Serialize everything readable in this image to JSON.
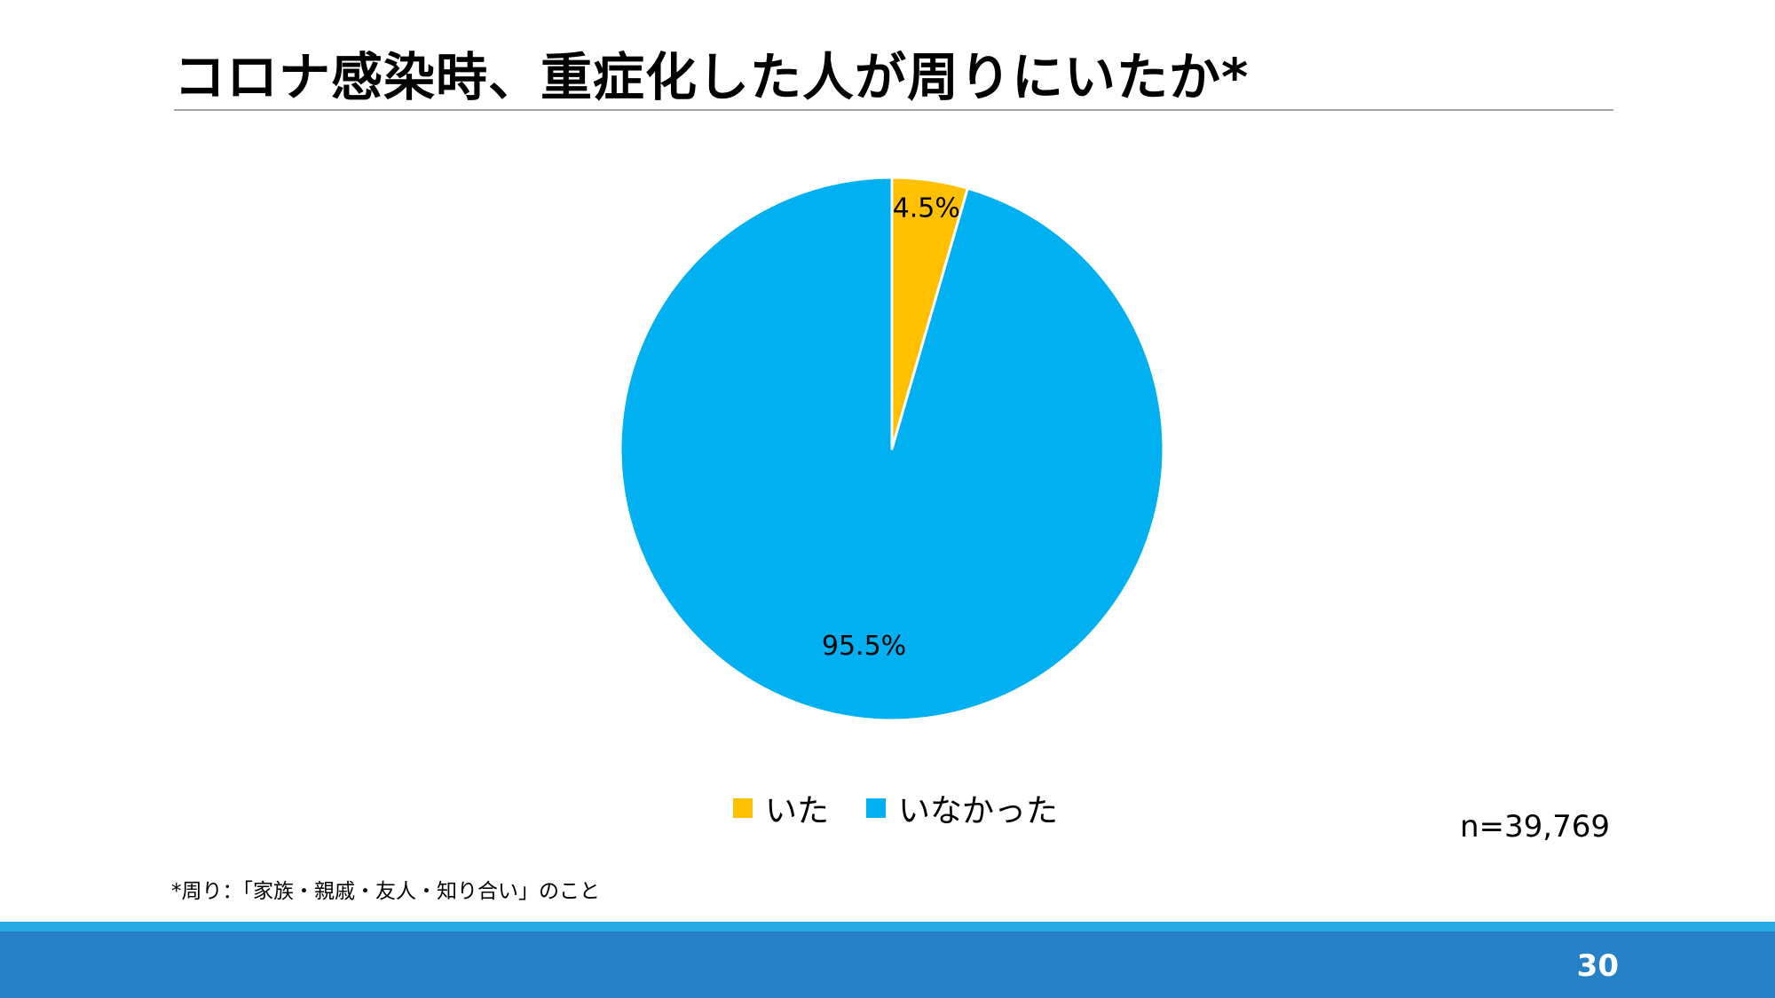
{
  "slide": {
    "title": "コロナ感染時、重症化した人が周りにいたか*",
    "sample_size": "n=39,769",
    "footnote": "*周り：「家族・親戚・友人・知り合い」のこと",
    "page_number": "30"
  },
  "colors": {
    "series_yes": "#FFC000",
    "series_no": "#00B0F0",
    "bar_dark": "#2681C6",
    "bar_light": "#27A9E1",
    "rule": "#A6A6A6"
  },
  "chart_data": {
    "type": "pie",
    "categories": [
      "いた",
      "いなかった"
    ],
    "values": [
      4.5,
      95.5
    ],
    "data_labels": [
      "4.5%",
      "95.5%"
    ],
    "colors": [
      "#FFC000",
      "#00B0F0"
    ],
    "start_angle": "12 o'clock",
    "direction": "clockwise",
    "legend_position": "bottom"
  }
}
